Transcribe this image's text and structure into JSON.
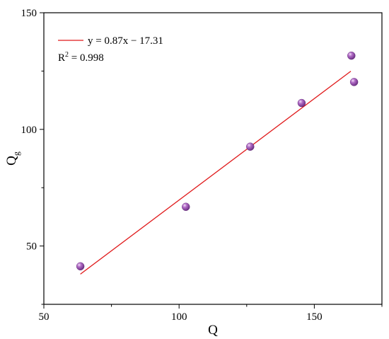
{
  "chart_data": {
    "type": "scatter",
    "xlabel": "Q",
    "ylabel": "Q",
    "ylabel_subscript": "g",
    "xlim": [
      50,
      175
    ],
    "ylim": [
      25,
      150
    ],
    "x_ticks": [
      50,
      100,
      150
    ],
    "y_ticks": [
      50,
      100,
      150
    ],
    "grid": false,
    "legend_position": "top-left",
    "series": [
      {
        "type": "scatter",
        "color": "#8e44ad",
        "points": [
          {
            "x": 63.5,
            "y": 41.3
          },
          {
            "x": 102.5,
            "y": 66.8
          },
          {
            "x": 126.3,
            "y": 92.6
          },
          {
            "x": 145.3,
            "y": 111.3
          },
          {
            "x": 163.7,
            "y": 131.6
          },
          {
            "x": 164.7,
            "y": 120.3
          }
        ]
      },
      {
        "type": "line",
        "name": "y = 0.87x − 17.31",
        "color": "#e0191a",
        "slope": 0.87,
        "intercept": -17.31,
        "x_range": [
          63.5,
          163.5
        ]
      }
    ],
    "annotations": [
      {
        "text_main": "R",
        "text_sup": "2",
        "text_rest": " = 0.998"
      }
    ]
  }
}
